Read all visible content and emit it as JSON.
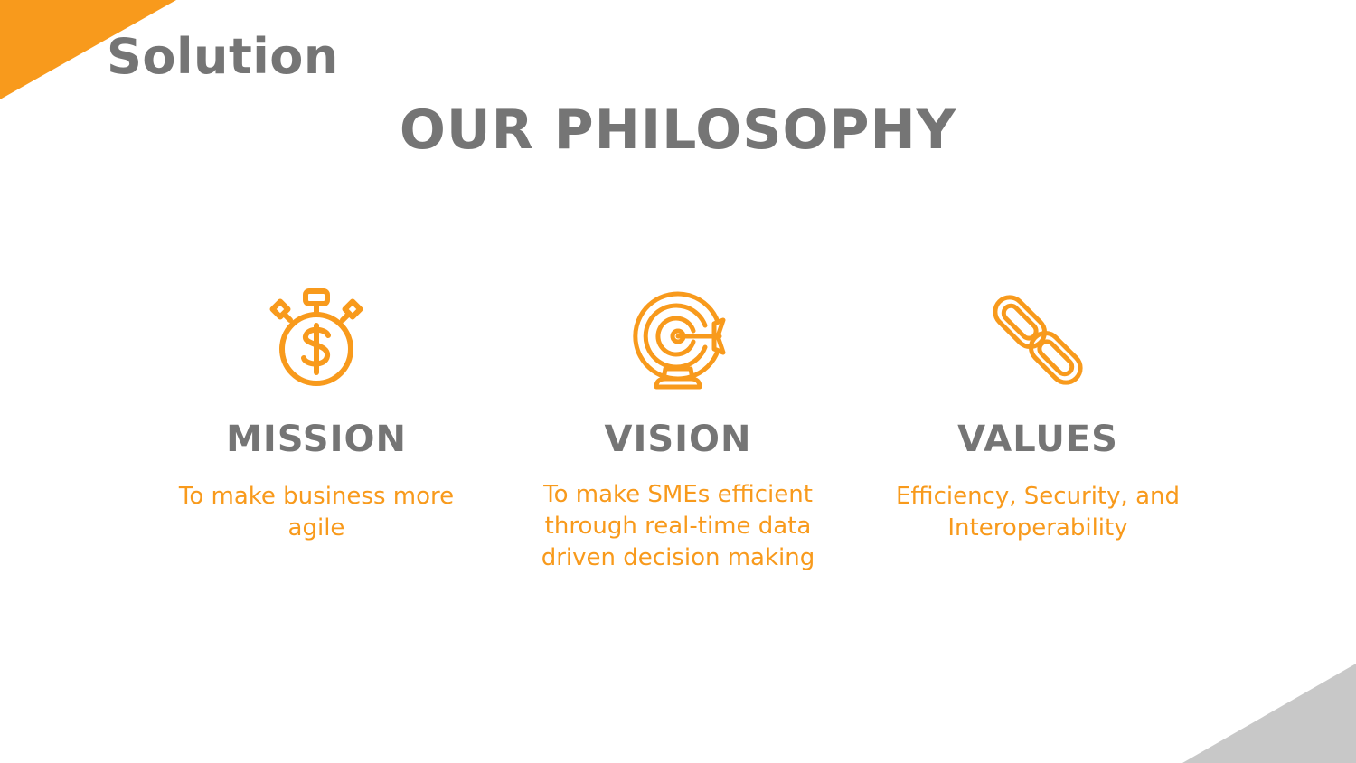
{
  "slide": {
    "section_title": "Solution",
    "heading": "OUR PHILOSOPHY",
    "accent_color": "#f89a1c",
    "heading_color": "#757575",
    "corner_bottom_color": "#c8c8c8"
  },
  "cards": [
    {
      "icon": "money-stopwatch-icon",
      "title": "MISSION",
      "text": "To make business more agile"
    },
    {
      "icon": "target-arrow-icon",
      "title": "VISION",
      "text": "To make SMEs efficient through real-time data driven decision making"
    },
    {
      "icon": "chain-link-icon",
      "title": "VALUES",
      "text": "Efficiency, Security, and Interoperability"
    }
  ]
}
